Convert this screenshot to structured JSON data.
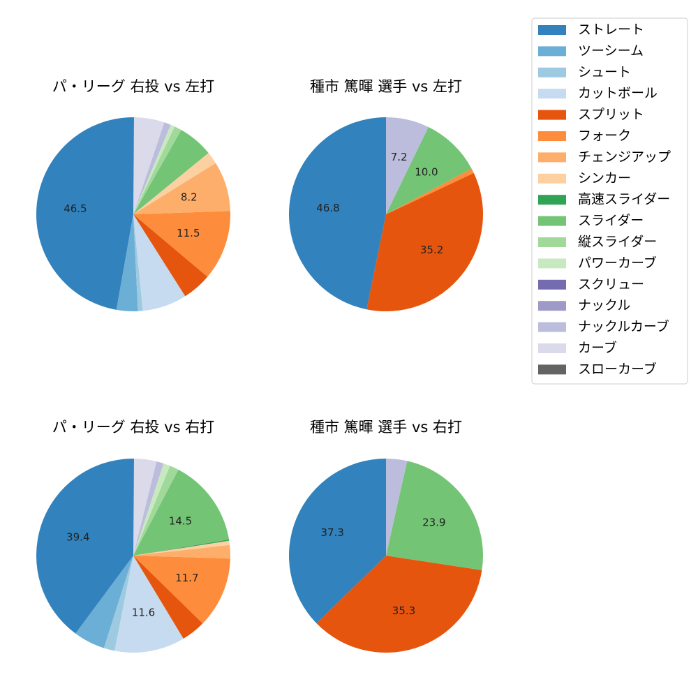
{
  "legend": {
    "items": [
      {
        "label": "ストレート",
        "color": "#3182bd"
      },
      {
        "label": "ツーシーム",
        "color": "#6baed6"
      },
      {
        "label": "シュート",
        "color": "#9ecae1"
      },
      {
        "label": "カットボール",
        "color": "#c6dbef"
      },
      {
        "label": "スプリット",
        "color": "#e6550d"
      },
      {
        "label": "フォーク",
        "color": "#fd8d3c"
      },
      {
        "label": "チェンジアップ",
        "color": "#fdae6b"
      },
      {
        "label": "シンカー",
        "color": "#fdd0a2"
      },
      {
        "label": "高速スライダー",
        "color": "#31a354"
      },
      {
        "label": "スライダー",
        "color": "#74c476"
      },
      {
        "label": "縦スライダー",
        "color": "#a1d99b"
      },
      {
        "label": "パワーカーブ",
        "color": "#c7e9c0"
      },
      {
        "label": "スクリュー",
        "color": "#756bb1"
      },
      {
        "label": "ナックル",
        "color": "#9e9ac8"
      },
      {
        "label": "ナックルカーブ",
        "color": "#bcbddc"
      },
      {
        "label": "カーブ",
        "color": "#dadaeb"
      },
      {
        "label": "スローカーブ",
        "color": "#636363"
      }
    ]
  },
  "chart_data": [
    {
      "type": "pie",
      "title": "パ・リーグ 右投 vs 左打",
      "slices": [
        {
          "name": "ストレート",
          "value": 46.5,
          "label": "46.5"
        },
        {
          "name": "ツーシーム",
          "value": 3.5,
          "label": ""
        },
        {
          "name": "シュート",
          "value": 0.8,
          "label": ""
        },
        {
          "name": "カットボール",
          "value": 7.3,
          "label": ""
        },
        {
          "name": "スプリット",
          "value": 4.8,
          "label": ""
        },
        {
          "name": "フォーク",
          "value": 11.5,
          "label": "11.5"
        },
        {
          "name": "チェンジアップ",
          "value": 8.2,
          "label": "8.2"
        },
        {
          "name": "シンカー",
          "value": 2.0,
          "label": ""
        },
        {
          "name": "スライダー",
          "value": 5.8,
          "label": ""
        },
        {
          "name": "縦スライダー",
          "value": 1.2,
          "label": ""
        },
        {
          "name": "パワーカーブ",
          "value": 0.7,
          "label": ""
        },
        {
          "name": "ナックルカーブ",
          "value": 1.1,
          "label": ""
        },
        {
          "name": "カーブ",
          "value": 5.0,
          "label": ""
        },
        {
          "name": "スローカーブ",
          "value": 0.1,
          "label": ""
        }
      ]
    },
    {
      "type": "pie",
      "title": "種市 篤暉 選手 vs 左打",
      "slices": [
        {
          "name": "ストレート",
          "value": 46.8,
          "label": "46.8"
        },
        {
          "name": "スプリット",
          "value": 35.2,
          "label": "35.2"
        },
        {
          "name": "フォーク",
          "value": 0.8,
          "label": ""
        },
        {
          "name": "スライダー",
          "value": 10.0,
          "label": "10.0"
        },
        {
          "name": "ナックルカーブ",
          "value": 7.2,
          "label": "7.2"
        }
      ]
    },
    {
      "type": "pie",
      "title": "パ・リーグ 右投 vs 右打",
      "slices": [
        {
          "name": "ストレート",
          "value": 39.4,
          "label": "39.4"
        },
        {
          "name": "ツーシーム",
          "value": 5.2,
          "label": ""
        },
        {
          "name": "シュート",
          "value": 1.8,
          "label": ""
        },
        {
          "name": "カットボール",
          "value": 11.6,
          "label": "11.6"
        },
        {
          "name": "スプリット",
          "value": 4.0,
          "label": ""
        },
        {
          "name": "フォーク",
          "value": 11.7,
          "label": "11.7"
        },
        {
          "name": "チェンジアップ",
          "value": 2.2,
          "label": ""
        },
        {
          "name": "シンカー",
          "value": 0.7,
          "label": ""
        },
        {
          "name": "高速スライダー",
          "value": 0.2,
          "label": ""
        },
        {
          "name": "スライダー",
          "value": 14.5,
          "label": "14.5"
        },
        {
          "name": "縦スライダー",
          "value": 1.5,
          "label": ""
        },
        {
          "name": "パワーカーブ",
          "value": 1.1,
          "label": ""
        },
        {
          "name": "ナックルカーブ",
          "value": 1.2,
          "label": ""
        },
        {
          "name": "カーブ",
          "value": 3.7,
          "label": ""
        },
        {
          "name": "スローカーブ",
          "value": 0.1,
          "label": ""
        }
      ]
    },
    {
      "type": "pie",
      "title": "種市 篤暉 選手 vs 右打",
      "slices": [
        {
          "name": "ストレート",
          "value": 37.3,
          "label": "37.3"
        },
        {
          "name": "スプリット",
          "value": 35.3,
          "label": "35.3"
        },
        {
          "name": "スライダー",
          "value": 23.9,
          "label": "23.9"
        },
        {
          "name": "ナックルカーブ",
          "value": 3.5,
          "label": ""
        }
      ]
    }
  ]
}
